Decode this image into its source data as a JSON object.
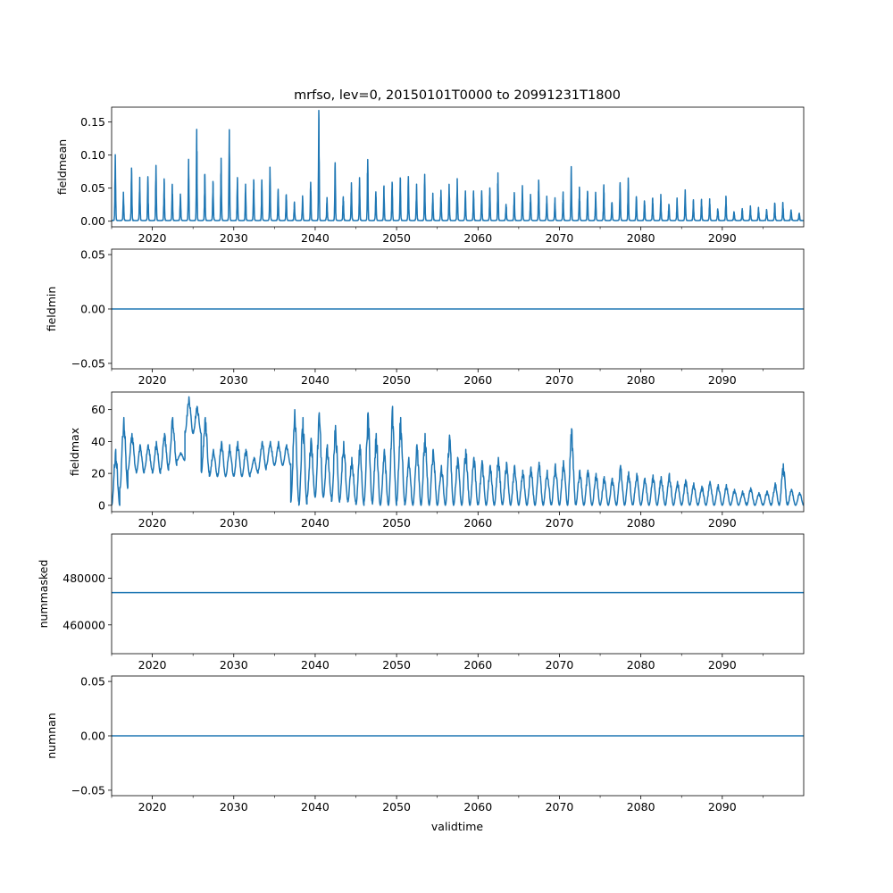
{
  "chart_data": {
    "type": "line",
    "title": "mrfso, lev=0, 20150101T0000 to 20991231T1800",
    "xlabel": "validtime",
    "xlim": [
      2015.0,
      2100.0
    ],
    "xticks": [
      2020,
      2030,
      2040,
      2050,
      2060,
      2070,
      2080,
      2090
    ],
    "xtick_labels": [
      "2020",
      "2030",
      "2040",
      "2050",
      "2060",
      "2070",
      "2080",
      "2090"
    ],
    "color": "#1f77b4",
    "grid": false,
    "panels": [
      {
        "ylabel": "fieldmean",
        "ylim": [
          -0.0085,
          0.1725
        ],
        "yticks": [
          0.0,
          0.05,
          0.1,
          0.15
        ],
        "ytick_labels": [
          "0.00",
          "0.05",
          "0.10",
          "0.15"
        ],
        "kind": "annual_peaks",
        "years": [
          2015,
          2016,
          2017,
          2018,
          2019,
          2020,
          2021,
          2022,
          2023,
          2024,
          2025,
          2026,
          2027,
          2028,
          2029,
          2030,
          2031,
          2032,
          2033,
          2034,
          2035,
          2036,
          2037,
          2038,
          2039,
          2040,
          2041,
          2042,
          2043,
          2044,
          2045,
          2046,
          2047,
          2048,
          2049,
          2050,
          2051,
          2052,
          2053,
          2054,
          2055,
          2056,
          2057,
          2058,
          2059,
          2060,
          2061,
          2062,
          2063,
          2064,
          2065,
          2066,
          2067,
          2068,
          2069,
          2070,
          2071,
          2072,
          2073,
          2074,
          2075,
          2076,
          2077,
          2078,
          2079,
          2080,
          2081,
          2082,
          2083,
          2084,
          2085,
          2086,
          2087,
          2088,
          2089,
          2090,
          2091,
          2092,
          2093,
          2094,
          2095,
          2096,
          2097,
          2098,
          2099
        ],
        "peak": [
          0.1,
          0.04,
          0.078,
          0.065,
          0.065,
          0.083,
          0.06,
          0.055,
          0.04,
          0.09,
          0.135,
          0.07,
          0.06,
          0.092,
          0.138,
          0.065,
          0.053,
          0.062,
          0.06,
          0.08,
          0.047,
          0.04,
          0.027,
          0.035,
          0.058,
          0.165,
          0.035,
          0.087,
          0.035,
          0.057,
          0.062,
          0.092,
          0.042,
          0.052,
          0.057,
          0.064,
          0.066,
          0.054,
          0.07,
          0.04,
          0.045,
          0.055,
          0.062,
          0.042,
          0.043,
          0.045,
          0.05,
          0.07,
          0.022,
          0.042,
          0.05,
          0.037,
          0.06,
          0.035,
          0.033,
          0.042,
          0.08,
          0.05,
          0.045,
          0.04,
          0.055,
          0.027,
          0.057,
          0.062,
          0.037,
          0.03,
          0.034,
          0.037,
          0.025,
          0.032,
          0.047,
          0.03,
          0.03,
          0.032,
          0.017,
          0.035,
          0.012,
          0.017,
          0.02,
          0.017,
          0.017,
          0.025,
          0.027,
          0.017,
          0.01
        ],
        "base": 0.001
      },
      {
        "ylabel": "fieldmin",
        "ylim": [
          -0.055,
          0.055
        ],
        "yticks": [
          -0.05,
          0.0,
          0.05
        ],
        "ytick_labels": [
          "−0.05",
          "0.00",
          "0.05"
        ],
        "kind": "constant",
        "value": 0.0
      },
      {
        "ylabel": "fieldmax",
        "ylim": [
          -4,
          71
        ],
        "yticks": [
          0,
          20,
          40,
          60
        ],
        "ytick_labels": [
          "0",
          "20",
          "40",
          "60"
        ],
        "kind": "annual_range",
        "peak": [
          35,
          55,
          45,
          38,
          38,
          40,
          45,
          55,
          33,
          68,
          62,
          55,
          35,
          40,
          38,
          40,
          35,
          30,
          40,
          40,
          40,
          38,
          60,
          55,
          42,
          58,
          38,
          50,
          40,
          30,
          38,
          58,
          45,
          35,
          62,
          55,
          30,
          38,
          45,
          35,
          25,
          44,
          30,
          35,
          30,
          28,
          25,
          30,
          27,
          25,
          22,
          24,
          27,
          22,
          26,
          28,
          48,
          22,
          22,
          20,
          18,
          17,
          25,
          21,
          20,
          17,
          19,
          18,
          20,
          15,
          16,
          14,
          12,
          15,
          13,
          13,
          10,
          9,
          11,
          8,
          9,
          14,
          26,
          10,
          8
        ],
        "trough": [
          0,
          10,
          22,
          20,
          22,
          20,
          22,
          25,
          28,
          45,
          45,
          20,
          18,
          18,
          18,
          18,
          18,
          20,
          22,
          25,
          25,
          25,
          2,
          0,
          5,
          5,
          5,
          2,
          3,
          2,
          0,
          2,
          0,
          0,
          0,
          2,
          0,
          0,
          0,
          0,
          0,
          0,
          0,
          0,
          0,
          0,
          0,
          0,
          0,
          0,
          0,
          0,
          0,
          0,
          0,
          0,
          0,
          0,
          0,
          0,
          0,
          0,
          0,
          0,
          0,
          0,
          0,
          0,
          0,
          0,
          0,
          0,
          0,
          0,
          0,
          0,
          0,
          0,
          0,
          0,
          0,
          0,
          0,
          0,
          0
        ]
      },
      {
        "ylabel": "nummasked",
        "ylim": [
          447700,
          498850
        ],
        "yticks": [
          460000,
          480000
        ],
        "ytick_labels": [
          "460000",
          "480000"
        ],
        "kind": "constant",
        "value": 473800
      },
      {
        "ylabel": "numnan",
        "ylim": [
          -0.055,
          0.055
        ],
        "yticks": [
          -0.05,
          0.0,
          0.05
        ],
        "ytick_labels": [
          "−0.05",
          "0.00",
          "0.05"
        ],
        "kind": "constant",
        "value": 0.0
      }
    ]
  }
}
